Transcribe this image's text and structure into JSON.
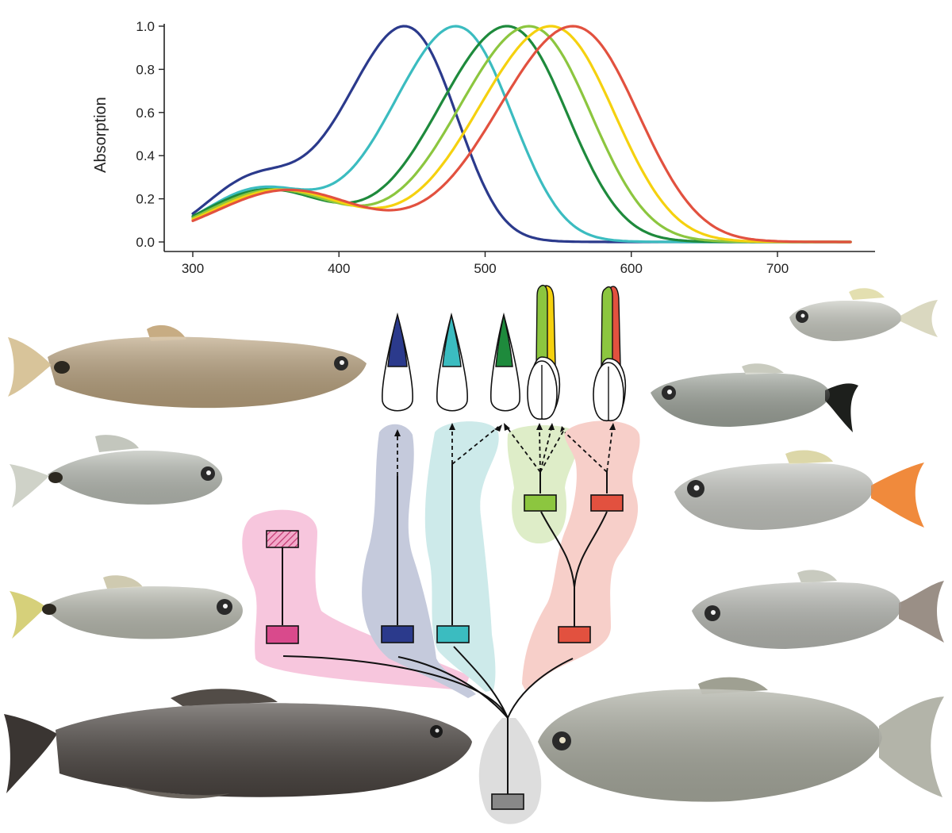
{
  "chart_data": {
    "type": "line",
    "title": "",
    "xlabel": "",
    "ylabel": "Absorption",
    "xlim": [
      300,
      750
    ],
    "ylim": [
      0,
      1.0
    ],
    "xticks": [
      300,
      400,
      500,
      600,
      700
    ],
    "yticks": [
      "0.0",
      "0.2",
      "0.4",
      "0.6",
      "0.8",
      "1.0"
    ],
    "grid": false,
    "legend": "none",
    "series": [
      {
        "lambda_max": 445,
        "color": "#2b3a8c",
        "beta_peak": 340,
        "beta_amp": 0.27
      },
      {
        "lambda_max": 480,
        "color": "#3bbcc0",
        "beta_peak": 345,
        "beta_amp": 0.24
      },
      {
        "lambda_max": 515,
        "color": "#1e8a3c",
        "beta_peak": 350,
        "beta_amp": 0.24
      },
      {
        "lambda_max": 530,
        "color": "#8cc63f",
        "beta_peak": 355,
        "beta_amp": 0.24
      },
      {
        "lambda_max": 545,
        "color": "#f5d10f",
        "beta_peak": 360,
        "beta_amp": 0.24
      },
      {
        "lambda_max": 560,
        "color": "#e2513f",
        "beta_peak": 365,
        "beta_amp": 0.24
      }
    ]
  },
  "diagram": {
    "colors": {
      "sws2_pink": "#d94a8c",
      "sws2_shade": "#f7c6dd",
      "blue": "#2b3a8c",
      "blue_shade": "#c5cadc",
      "cyan": "#3bbcc0",
      "cyan_shade": "#cdeaea",
      "green": "#1e8a3c",
      "lime": "#8cc63f",
      "lime_shade": "#deedc8",
      "yellow": "#f5d10f",
      "red": "#e2513f",
      "red_shade": "#f7cfc9",
      "ancestor": "#888888",
      "ancestor_shade": "#dddddd"
    },
    "photoreceptors": [
      {
        "name": "single-cone-blue",
        "color": "#2b3a8c"
      },
      {
        "name": "single-cone-cyan",
        "color": "#3bbcc0"
      },
      {
        "name": "single-cone-green",
        "color": "#1e8a3c"
      },
      {
        "name": "double-cone-green-yellow",
        "colors": [
          "#8cc63f",
          "#f5d10f"
        ]
      },
      {
        "name": "double-cone-green-red",
        "colors": [
          "#8cc63f",
          "#e2513f"
        ]
      }
    ],
    "fish": [
      {
        "name": "fish-pencilfish",
        "color": "#b9a27e"
      },
      {
        "name": "fish-silver-hatchet",
        "color": "#b8bcb4"
      },
      {
        "name": "fish-tetra-left",
        "color": "#b9bbb0"
      },
      {
        "name": "fish-trahira",
        "color": "#4a4440"
      },
      {
        "name": "fish-small-tetra",
        "color": "#c7c9c0"
      },
      {
        "name": "fish-blackwing-tetra",
        "color": "#9ea49b"
      },
      {
        "name": "fish-redtail-tetra",
        "color": "#c4c6c0"
      },
      {
        "name": "fish-silver-characin",
        "color": "#b6b8b2"
      },
      {
        "name": "fish-large-characin",
        "color": "#a9ab9f"
      }
    ]
  }
}
